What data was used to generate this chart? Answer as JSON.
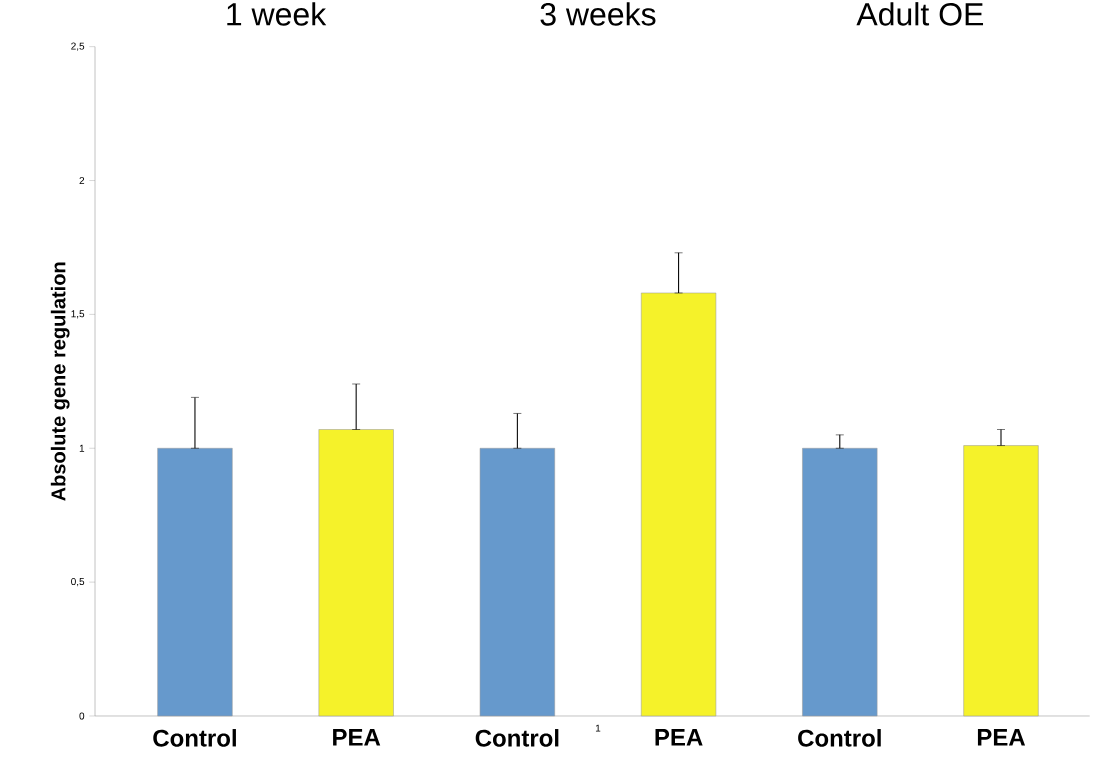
{
  "chart_data": {
    "type": "bar",
    "ylabel": "Absolute gene regulation",
    "categories": [
      "Control",
      "PEA",
      "Control",
      "PEA",
      "Control",
      "PEA"
    ],
    "values": [
      1.0,
      1.07,
      1.0,
      1.58,
      1.0,
      1.01
    ],
    "errors": [
      [
        1.0,
        1.19
      ],
      [
        1.07,
        1.24
      ],
      [
        1.0,
        1.13
      ],
      [
        1.58,
        1.73
      ],
      [
        1.0,
        1.05
      ],
      [
        1.01,
        1.07
      ]
    ],
    "colors": [
      "#6699cc",
      "#f5f22a",
      "#6699cc",
      "#f5f22a",
      "#6699cc",
      "#f5f22a"
    ],
    "ylim": [
      0,
      2.5
    ],
    "yticks": [
      0,
      {
        "value": 0.5,
        "label": "0,5"
      },
      1,
      {
        "value": 1.5,
        "label": "1,5"
      },
      2,
      {
        "value": 2.5,
        "label": "2,5"
      }
    ],
    "grid": false,
    "annotations": [
      "1 week",
      "3 weeks",
      "Adult OE",
      "1"
    ]
  }
}
